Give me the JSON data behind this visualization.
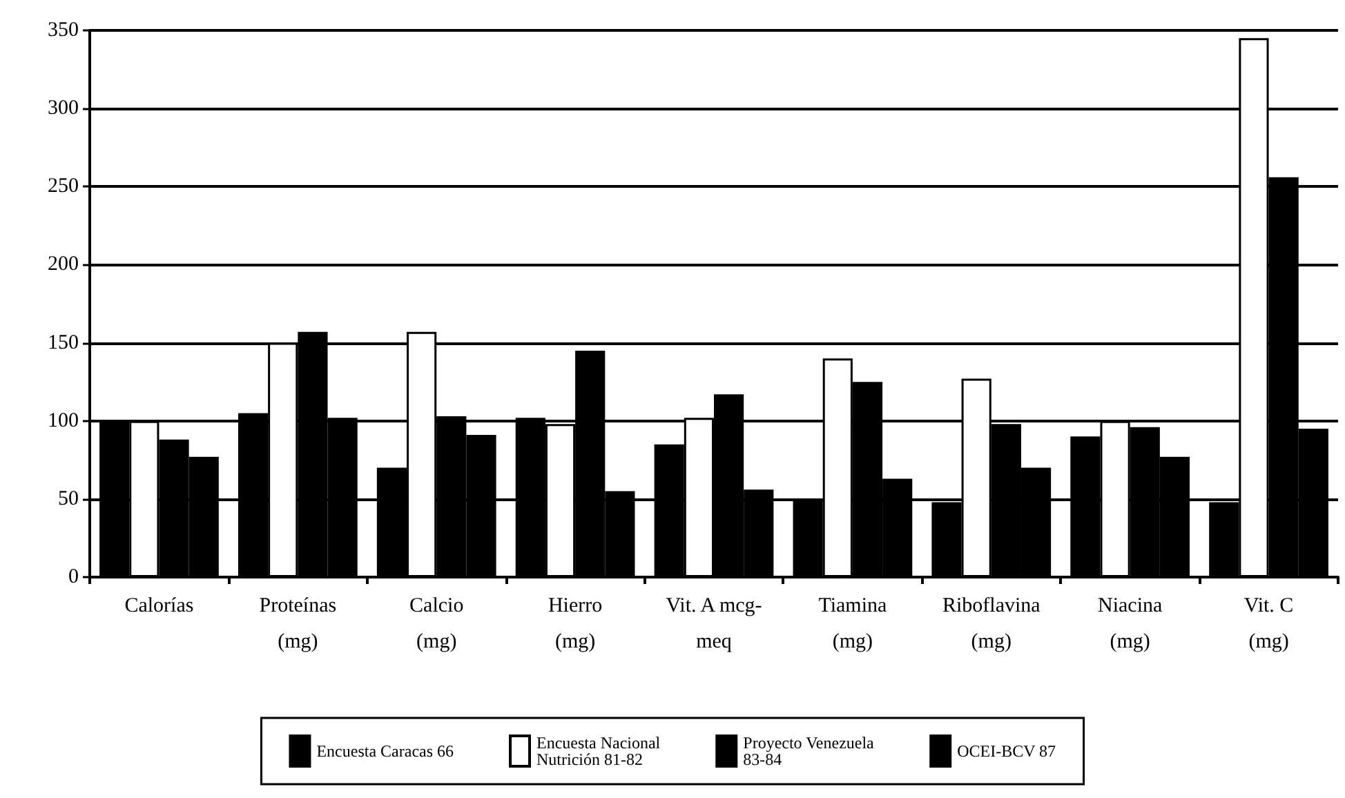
{
  "chart_data": {
    "type": "bar",
    "categories": [
      "Calorías",
      "Proteínas\n(mg)",
      "Calcio\n(mg)",
      "Hierro\n(mg)",
      "Vit. A mcg-\nmeq",
      "Tiamina\n(mg)",
      "Riboflavina\n(mg)",
      "Niacina\n(mg)",
      "Vit. C\n(mg)"
    ],
    "series": [
      {
        "name": "Encuesta Caracas 66",
        "color": "#000000",
        "values": [
          100,
          105,
          70,
          102,
          85,
          50,
          48,
          90,
          48
        ]
      },
      {
        "name": "Encuesta Nacional\nNutrición 81-82",
        "color": "#ffffff",
        "values": [
          100,
          150,
          157,
          98,
          102,
          140,
          127,
          100,
          345
        ]
      },
      {
        "name": "Proyecto Venezuela\n83-84",
        "color": "#000000",
        "values": [
          88,
          157,
          103,
          145,
          117,
          125,
          98,
          96,
          256
        ]
      },
      {
        "name": "OCEI-BCV 87",
        "color": "#000000",
        "values": [
          77,
          102,
          91,
          55,
          56,
          63,
          70,
          77,
          95
        ]
      }
    ],
    "ylim": [
      0,
      350
    ],
    "yticks": [
      0,
      50,
      100,
      150,
      200,
      250,
      300,
      350
    ],
    "grid": "y",
    "legend": "bottom"
  }
}
